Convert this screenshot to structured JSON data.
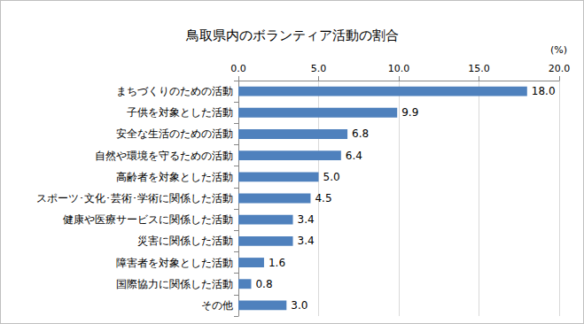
{
  "chart_data": {
    "type": "bar",
    "title": "鳥取県内のボランティア活動の割合",
    "xlabel": "(%)",
    "orientation": "horizontal",
    "categories": [
      "まちづくりのための活動",
      "子供を対象とした活動",
      "安全な生活のための活動",
      "自然や環境を守るための活動",
      "高齢者を対象とした活動",
      "スポーツ･文化･芸術･学術に関係した活動",
      "健康や医療サービスに関係した活動",
      "災害に関係した活動",
      "障害者を対象とした活動",
      "国際協力に関係した活動",
      "その他"
    ],
    "values": [
      18.0,
      9.9,
      6.8,
      6.4,
      5.0,
      4.5,
      3.4,
      3.4,
      1.6,
      0.8,
      3.0
    ],
    "value_labels": [
      "18.0",
      "9.9",
      "6.8",
      "6.4",
      "5.0",
      "4.5",
      "3.4",
      "3.4",
      "1.6",
      "0.8",
      "3.0"
    ],
    "data_labels": true,
    "color": "#4f81bd",
    "xlim": [
      0,
      20
    ],
    "xticks": [
      {
        "value": 0,
        "label": "0.0"
      },
      {
        "value": 5,
        "label": "5.0"
      },
      {
        "value": 10,
        "label": "10.0"
      },
      {
        "value": 15,
        "label": "15.0"
      },
      {
        "value": 20,
        "label": "20.0"
      }
    ],
    "grid": true
  }
}
